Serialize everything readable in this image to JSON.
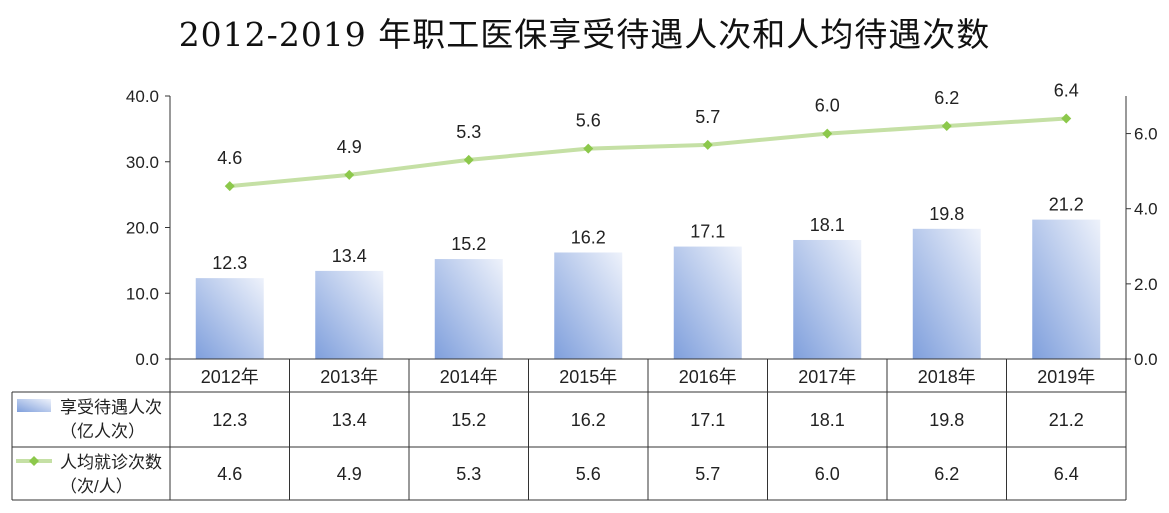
{
  "chart_data": {
    "type": "bar",
    "title": "2012-2019 年职工医保享受待遇人次和人均待遇次数",
    "categories": [
      "2012年",
      "2013年",
      "2014年",
      "2015年",
      "2016年",
      "2017年",
      "2018年",
      "2019年"
    ],
    "series": [
      {
        "name": "享受待遇人次（亿人次）",
        "name_lines": [
          "享受待遇人次",
          "（亿人次）"
        ],
        "type": "bar",
        "axis": "left",
        "color": "#a9bde6",
        "values": [
          12.3,
          13.4,
          15.2,
          16.2,
          17.1,
          18.1,
          19.8,
          21.2
        ],
        "labels": [
          "12.3",
          "13.4",
          "15.2",
          "16.2",
          "17.1",
          "18.1",
          "19.8",
          "21.2"
        ]
      },
      {
        "name": "人均就诊次数（次/人）",
        "name_lines": [
          "人均就诊次数",
          "（次/人）"
        ],
        "type": "line",
        "axis": "right",
        "color": "#c5e0a5",
        "marker_color": "#8cc84b",
        "values": [
          4.6,
          4.9,
          5.3,
          5.6,
          5.7,
          6.0,
          6.2,
          6.4
        ],
        "labels": [
          "4.6",
          "4.9",
          "5.3",
          "5.6",
          "5.7",
          "6.0",
          "6.2",
          "6.4"
        ]
      }
    ],
    "y_left": {
      "min": 0,
      "max": 40,
      "ticks": [
        "0.0",
        "10.0",
        "20.0",
        "30.0",
        "40.0"
      ]
    },
    "y_right": {
      "min": 0,
      "max": 7,
      "ticks": [
        "0.0",
        "2.0",
        "4.0",
        "6.0"
      ]
    },
    "legend": "data-table",
    "grid": false
  }
}
